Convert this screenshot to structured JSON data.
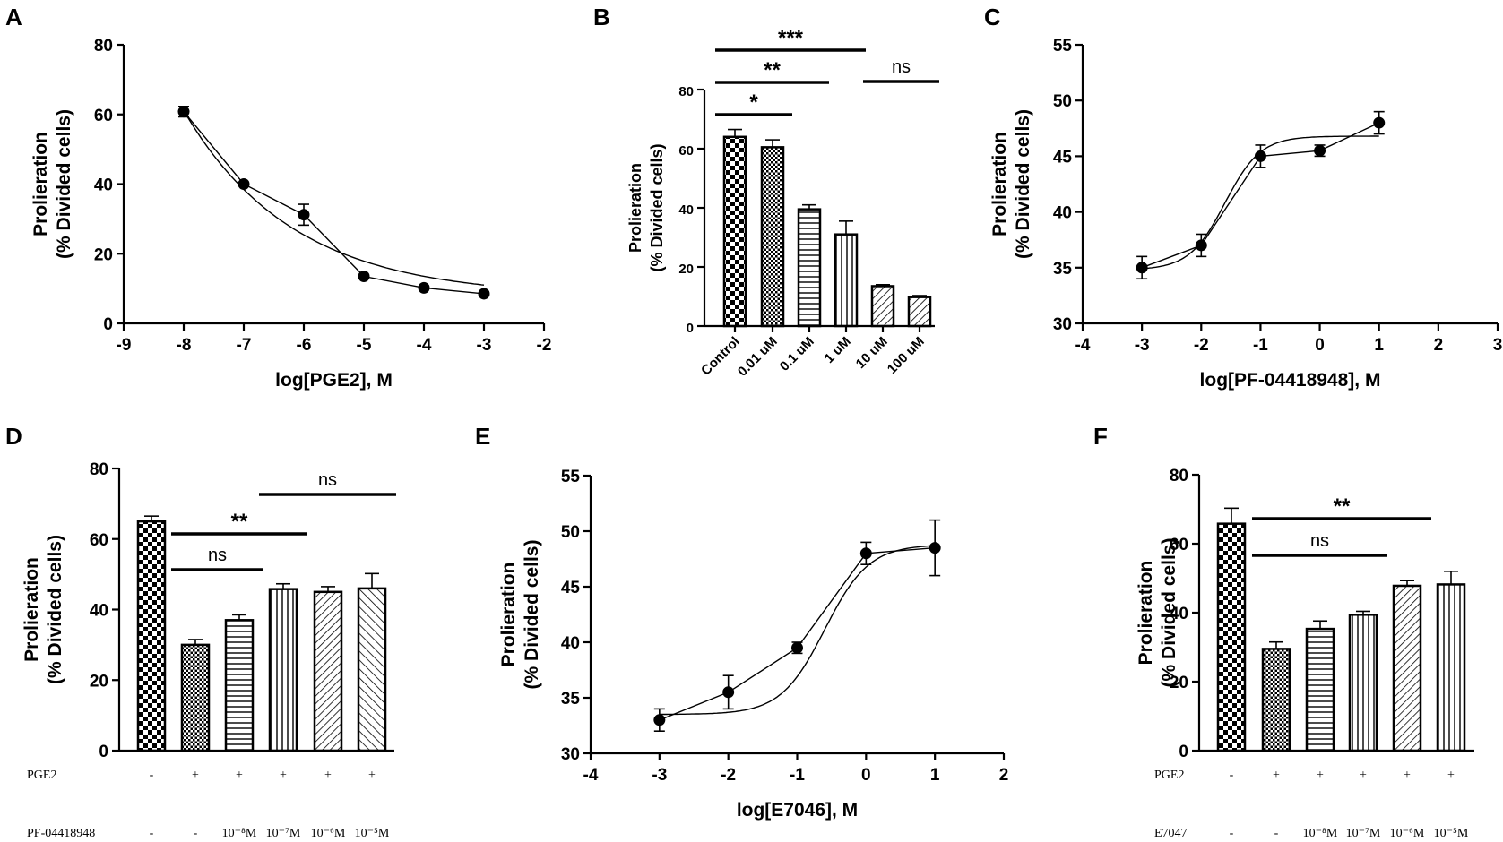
{
  "chart_data": [
    {
      "panel": "A",
      "type": "scatter",
      "xlabel": "log[PGE2], M",
      "ylabel": [
        "Prolieration",
        "(% Divided cells)"
      ],
      "xlim": [
        -9,
        -2
      ],
      "ylim": [
        0,
        80
      ],
      "xticks": [
        "-9",
        "-8",
        "-7",
        "-6",
        "-5",
        "-4",
        "-3",
        "-2"
      ],
      "yticks": [
        "0",
        "20",
        "40",
        "60",
        "80"
      ],
      "x": [
        -8,
        -7,
        -6,
        -5,
        -4,
        -3
      ],
      "y": [
        60.8,
        40,
        31.2,
        13.5,
        10.2,
        8.5
      ],
      "err": [
        1.5,
        0.5,
        3,
        0.5,
        0.5,
        0.5
      ]
    },
    {
      "panel": "B",
      "type": "bar",
      "ylabel": [
        "Prolieration",
        "(% Divided cells)"
      ],
      "ylim": [
        0,
        80
      ],
      "yticks": [
        "0",
        "20",
        "40",
        "60",
        "80"
      ],
      "categories": [
        "Control",
        "0.01 uM",
        "0.1 uM",
        "1 uM",
        "10 uM",
        "100 uM"
      ],
      "values": [
        64,
        60.5,
        39.5,
        31,
        13.5,
        9.8
      ],
      "err": [
        2.5,
        2.5,
        1.5,
        4.5,
        0.5,
        0.5
      ],
      "significance": [
        {
          "label": "***",
          "from": 0,
          "to": 3
        },
        {
          "label": "**",
          "from": 0,
          "to": 2
        },
        {
          "label": "*",
          "from": 0,
          "to": 1
        },
        {
          "label": "ns",
          "from": 4,
          "to": 5
        }
      ]
    },
    {
      "panel": "C",
      "type": "scatter",
      "xlabel": "log[PF-04418948], M",
      "ylabel": [
        "Prolieration",
        "(% Divided cells)"
      ],
      "xlim": [
        -4,
        3
      ],
      "ylim": [
        30,
        55
      ],
      "xticks": [
        "-4",
        "-3",
        "-2",
        "-1",
        "0",
        "1",
        "2",
        "3"
      ],
      "yticks": [
        "30",
        "35",
        "40",
        "45",
        "50",
        "55"
      ],
      "x": [
        -3,
        -2,
        -1,
        0,
        1
      ],
      "y": [
        35,
        37,
        45,
        45.5,
        48
      ],
      "err": [
        1,
        1,
        1,
        0.5,
        1
      ]
    },
    {
      "panel": "D",
      "type": "bar",
      "ylabel": [
        "Prolieration",
        "(% Divided cells)"
      ],
      "ylim": [
        0,
        80
      ],
      "yticks": [
        "0",
        "20",
        "40",
        "60",
        "80"
      ],
      "values": [
        65,
        30,
        37,
        45.8,
        45,
        46
      ],
      "err": [
        1.5,
        1.5,
        1.5,
        1.5,
        1.5,
        4.2
      ],
      "row1_label": "PGE2",
      "row1": [
        "-",
        "+",
        "+",
        "+",
        "+",
        "+"
      ],
      "row2_label": "PF-04418948",
      "row2": [
        "-",
        "-",
        "10⁻⁸M",
        "10⁻⁷M",
        "10⁻⁶M",
        "10⁻⁵M"
      ],
      "significance": [
        {
          "label": "ns",
          "from": 3,
          "to": 5
        },
        {
          "label": "**",
          "from": 1,
          "to": 3
        },
        {
          "label": "ns",
          "from": 1,
          "to": 2
        }
      ]
    },
    {
      "panel": "E",
      "type": "scatter",
      "xlabel": "log[E7046], M",
      "ylabel": [
        "Prolieration",
        "(% Divided cells)"
      ],
      "xlim": [
        -4,
        2
      ],
      "ylim": [
        30,
        55
      ],
      "xticks": [
        "-4",
        "-3",
        "-2",
        "-1",
        "0",
        "1",
        "2"
      ],
      "yticks": [
        "30",
        "35",
        "40",
        "45",
        "50",
        "55"
      ],
      "x": [
        -3,
        -2,
        -1,
        0,
        1
      ],
      "y": [
        33,
        35.5,
        39.5,
        48,
        48.5
      ],
      "err": [
        1,
        1.5,
        0.5,
        1,
        2.5
      ]
    },
    {
      "panel": "F",
      "type": "bar",
      "ylabel": [
        "Prolieration",
        "(% Divided cells)"
      ],
      "ylim": [
        0,
        80
      ],
      "yticks": [
        "0",
        "20",
        "40",
        "60",
        "80"
      ],
      "values": [
        65.8,
        29.5,
        35.3,
        39.4,
        47.8,
        48.2
      ],
      "err": [
        4.5,
        2,
        2.3,
        1,
        1.5,
        3.8
      ],
      "row1_label": "PGE2",
      "row1": [
        "-",
        "+",
        "+",
        "+",
        "+",
        "+"
      ],
      "row2_label": "E7047",
      "row2": [
        "-",
        "-",
        "10⁻⁸M",
        "10⁻⁷M",
        "10⁻⁶M",
        "10⁻⁵M"
      ],
      "significance": [
        {
          "label": "**",
          "from": 1,
          "to": 4
        },
        {
          "label": "ns",
          "from": 1,
          "to": 3
        }
      ]
    }
  ]
}
